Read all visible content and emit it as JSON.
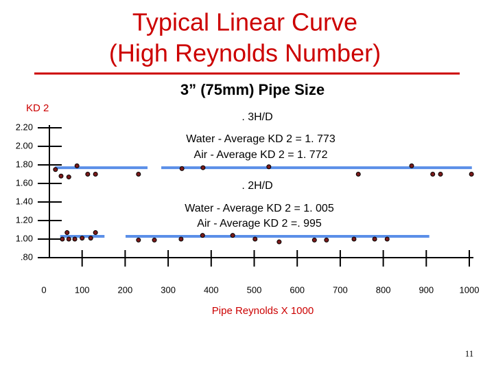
{
  "chart_data": {
    "type": "scatter",
    "title": [
      "Typical Linear Curve",
      "(High Reynolds Number)"
    ],
    "subtitle": "3” (75mm) Pipe Size",
    "y_label": "KD 2",
    "x_label": "Pipe Reynolds X 1000",
    "annotations": [
      ". 3H/D",
      "Water - Average KD 2 = 1. 773",
      "Air - Average KD 2 = 1. 772",
      ". 2H/D",
      "Water - Average KD 2 = 1. 005",
      "Air - Average KD 2 =. 995"
    ],
    "xlim": [
      0,
      1020
    ],
    "ylim": [
      0.8,
      2.23
    ],
    "xticks": [
      0,
      100,
      200,
      300,
      400,
      500,
      600,
      700,
      800,
      900,
      1000
    ],
    "yticks": [
      {
        "value": 0.8,
        "label": ".80"
      },
      {
        "value": 1.0,
        "label": "1.00"
      },
      {
        "value": 1.2,
        "label": "1.20"
      },
      {
        "value": 1.4,
        "label": "1.40"
      },
      {
        "value": 1.6,
        "label": "1.60"
      },
      {
        "value": 1.8,
        "label": "1.80"
      },
      {
        "value": 2.0,
        "label": "2.00"
      },
      {
        "value": 2.2,
        "label": "2.20"
      }
    ],
    "series": [
      {
        "type": "line",
        "color": "#5b8fe8",
        "x": [
          37,
          252,
          268,
          284,
          1006
        ],
        "values": [
          1.77,
          1.77,
          null,
          1.77,
          1.77
        ]
      },
      {
        "type": "line",
        "color": "#5b8fe8",
        "x": [
          49,
          152,
          176,
          201,
          907
        ],
        "values": [
          1.03,
          1.03,
          null,
          1.03,
          1.03
        ]
      },
      {
        "type": "scatter",
        "color": "#7a1a1a",
        "x": [
          38,
          51,
          69,
          88,
          113,
          131,
          231,
          332,
          381,
          534,
          742,
          866,
          915,
          933,
          1005
        ],
        "values": [
          1.75,
          1.68,
          1.67,
          1.79,
          1.7,
          1.7,
          1.7,
          1.76,
          1.77,
          1.78,
          1.7,
          1.79,
          1.7,
          1.7,
          1.7
        ]
      },
      {
        "type": "scatter",
        "color": "#7a1a1a",
        "x": [
          54,
          65,
          69,
          83,
          100,
          120,
          131,
          231,
          268,
          330,
          380,
          450,
          502,
          558,
          640,
          668,
          732,
          780,
          809
        ],
        "values": [
          1.0,
          1.07,
          1.0,
          1.0,
          1.01,
          1.01,
          1.07,
          0.99,
          0.99,
          1.0,
          1.04,
          1.04,
          1.0,
          0.97,
          0.99,
          0.99,
          1.0,
          1.0,
          1.0
        ]
      }
    ]
  },
  "slide_number": "11"
}
